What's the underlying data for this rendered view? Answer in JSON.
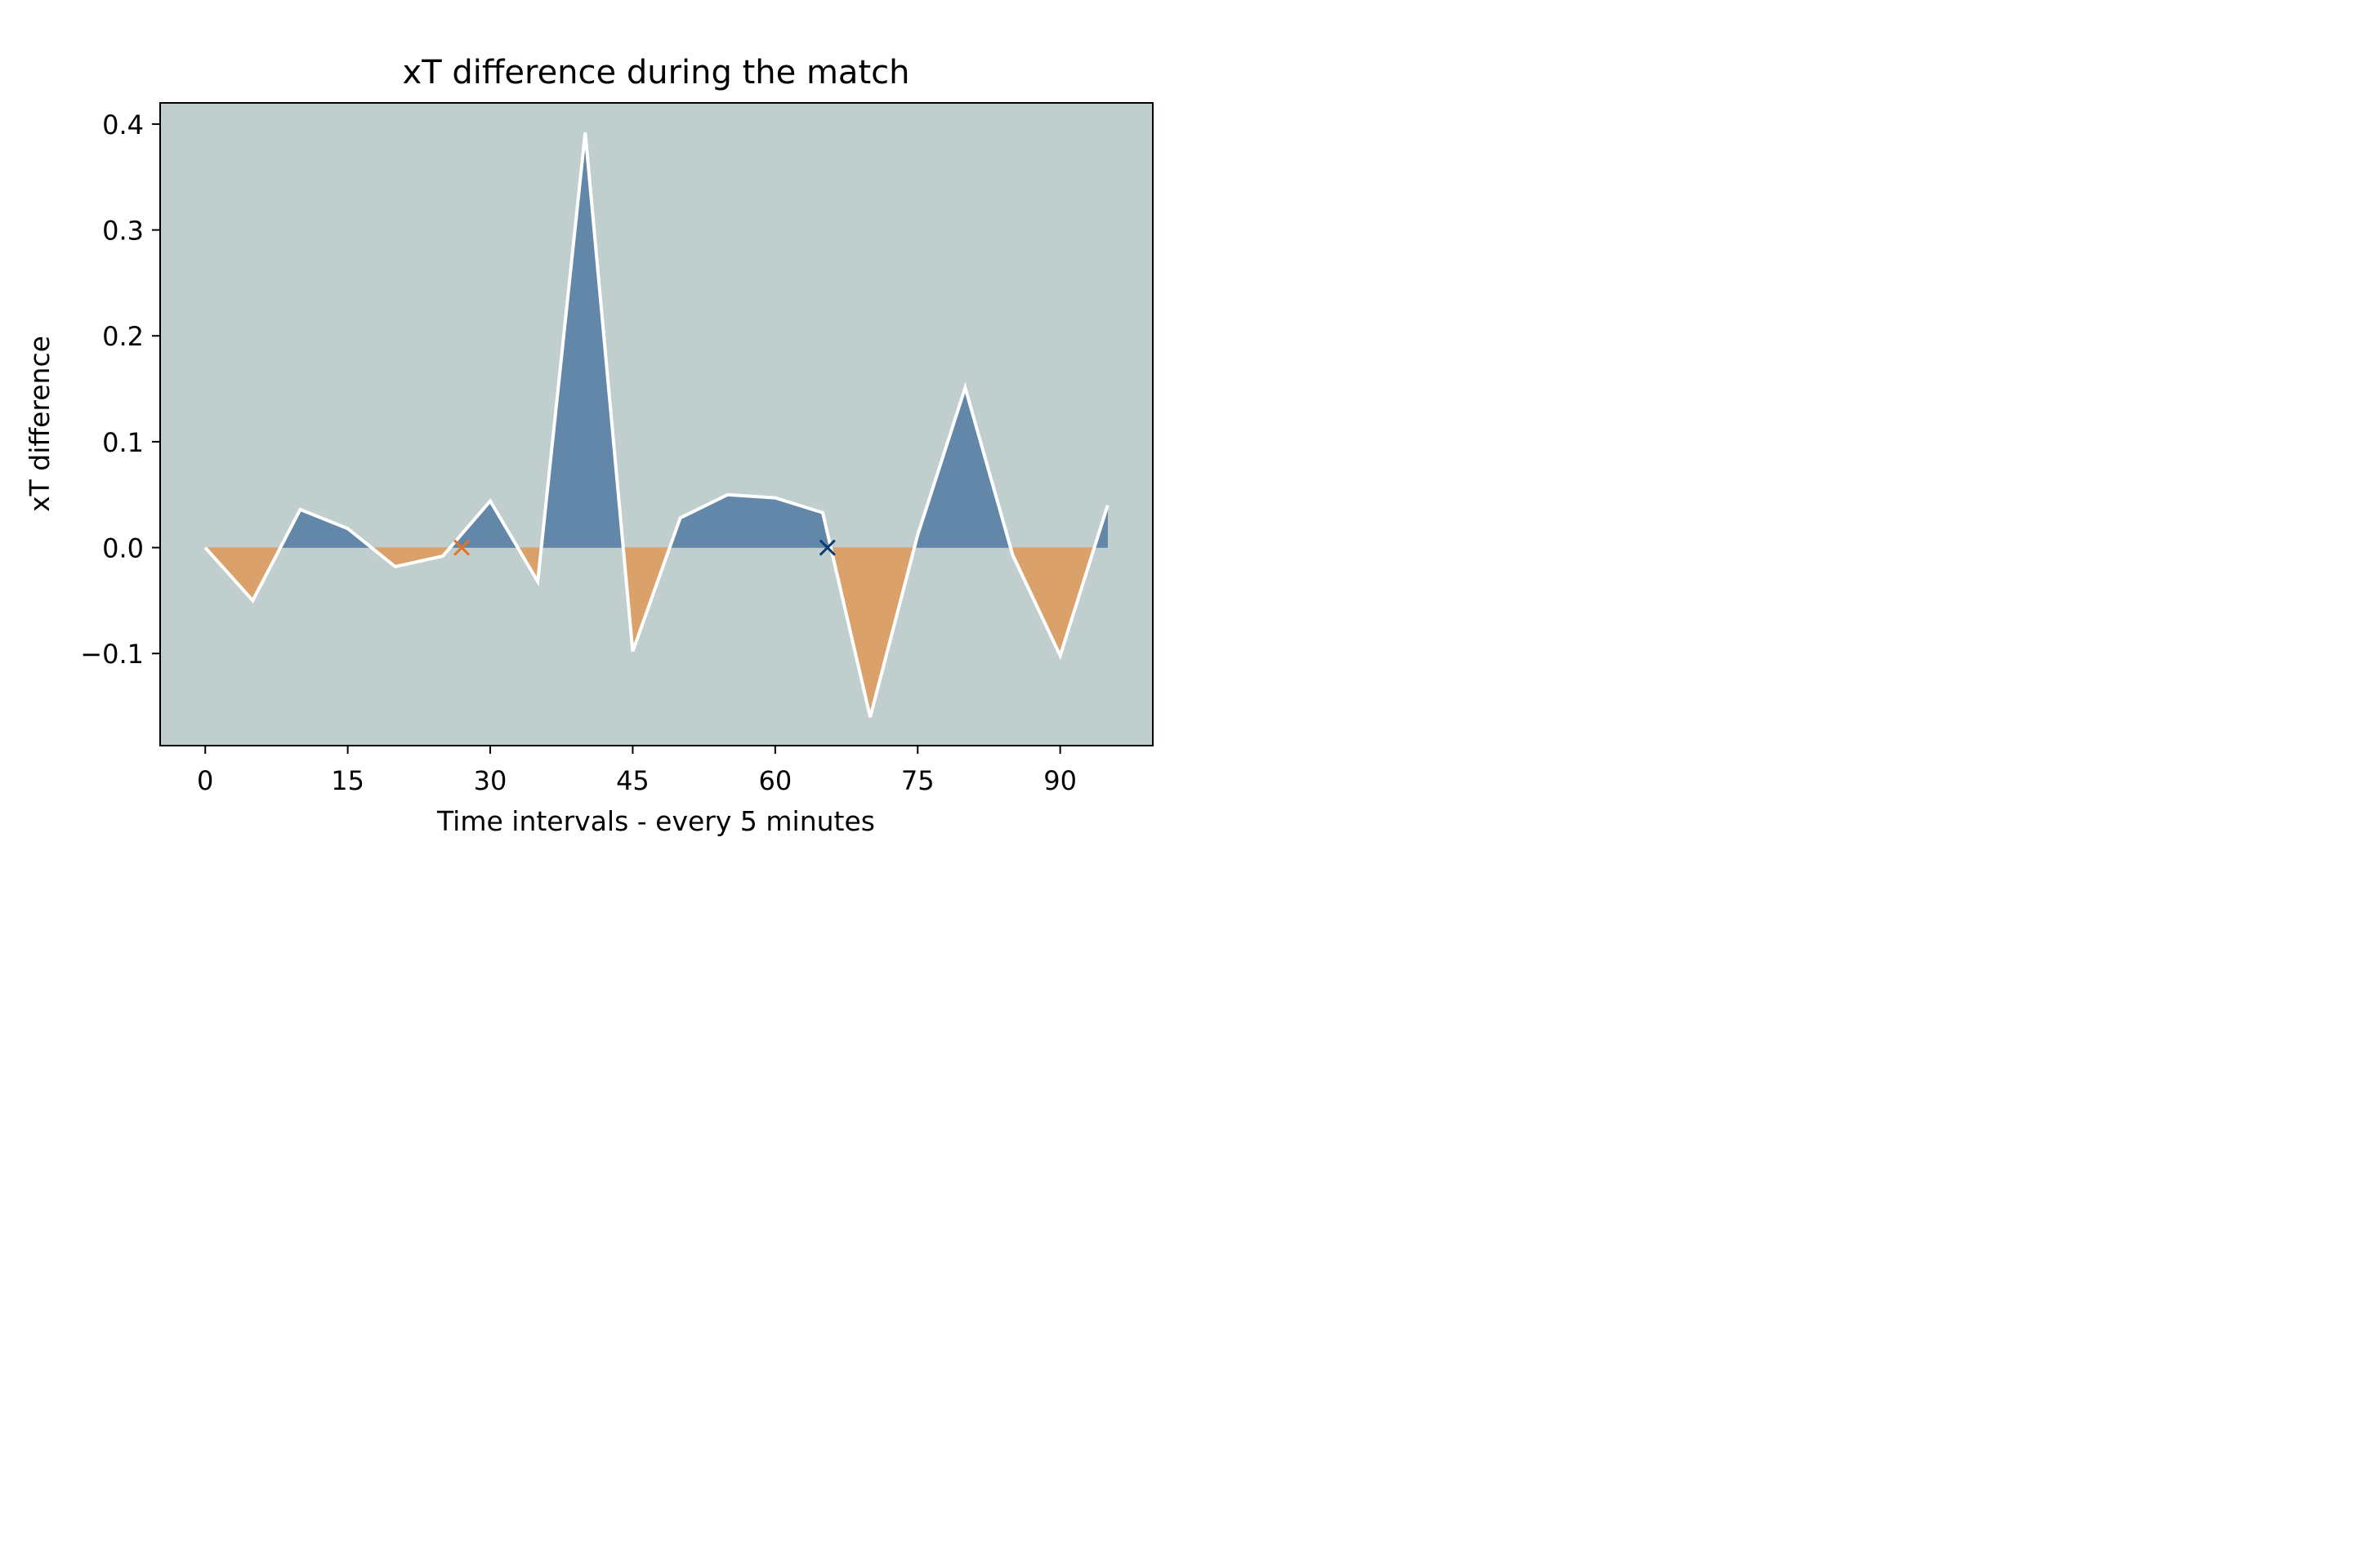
{
  "chart_data": {
    "type": "area",
    "title": "xT difference during the match",
    "xlabel": "Time intervals - every 5 minutes",
    "ylabel": "xT difference",
    "xlim": [
      -4.75,
      99.75
    ],
    "ylim": [
      -0.187,
      0.42
    ],
    "x_ticks": [
      0,
      15,
      30,
      45,
      60,
      75,
      90
    ],
    "x_tick_labels": [
      "0",
      "15",
      "30",
      "45",
      "60",
      "75",
      "90"
    ],
    "y_ticks": [
      0.4,
      0.3,
      0.2,
      0.1,
      0.0,
      -0.1
    ],
    "y_tick_labels": [
      "0.4",
      "0.3",
      "0.2",
      "0.1",
      "0.0",
      "−0.1"
    ],
    "x": [
      0,
      5,
      10,
      15,
      20,
      25,
      30,
      35,
      40,
      45,
      50,
      55,
      60,
      65,
      70,
      75,
      80,
      85,
      90,
      95
    ],
    "y": [
      0.0,
      -0.05,
      0.036,
      0.018,
      -0.018,
      -0.008,
      0.044,
      -0.032,
      0.392,
      -0.098,
      0.028,
      0.05,
      0.047,
      0.033,
      -0.16,
      0.012,
      0.151,
      -0.007,
      -0.102,
      0.04
    ],
    "markers": [
      {
        "x": 27,
        "y": 0.0,
        "symbol": "x",
        "color": "#e8731f"
      },
      {
        "x": 65.5,
        "y": 0.0,
        "symbol": "x",
        "color": "#0b3c74"
      }
    ],
    "colors": {
      "positive_fill": "#6387a8",
      "negative_fill": "#dba16b",
      "line": "#ffffff",
      "plot_background": "#c1cece"
    },
    "grid": false
  }
}
